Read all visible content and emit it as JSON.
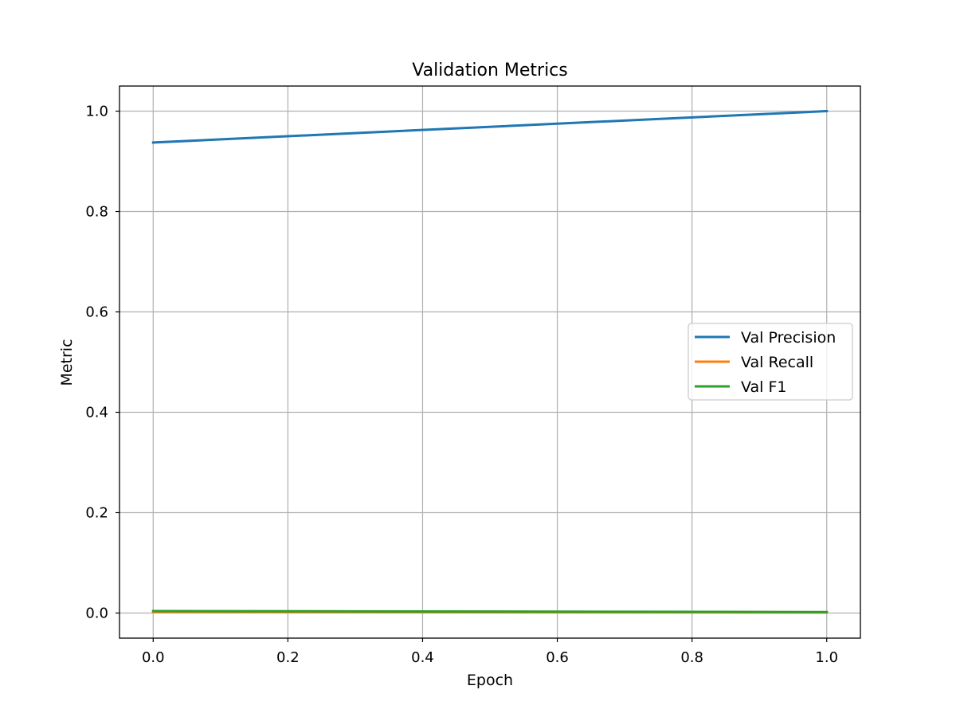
{
  "chart_data": {
    "type": "line",
    "title": "Validation Metrics",
    "xlabel": "Epoch",
    "ylabel": "Metric",
    "xlim": [
      -0.05,
      1.05
    ],
    "ylim": [
      -0.05,
      1.05
    ],
    "xticks": [
      0.0,
      0.2,
      0.4,
      0.6,
      0.8,
      1.0
    ],
    "xtick_labels": [
      "0.0",
      "0.2",
      "0.4",
      "0.6",
      "0.8",
      "1.0"
    ],
    "yticks": [
      0.0,
      0.2,
      0.4,
      0.6,
      0.8,
      1.0
    ],
    "ytick_labels": [
      "0.0",
      "0.2",
      "0.4",
      "0.6",
      "0.8",
      "1.0"
    ],
    "grid": true,
    "legend_position": "center-right",
    "series": [
      {
        "name": "Val Precision",
        "color": "#1f77b4",
        "x": [
          0,
          1
        ],
        "y": [
          0.9375,
          1.0
        ]
      },
      {
        "name": "Val Recall",
        "color": "#ff7f0e",
        "x": [
          0,
          1
        ],
        "y": [
          0.002,
          0.001
        ]
      },
      {
        "name": "Val F1",
        "color": "#2ca02c",
        "x": [
          0,
          1
        ],
        "y": [
          0.004,
          0.002
        ]
      }
    ]
  }
}
